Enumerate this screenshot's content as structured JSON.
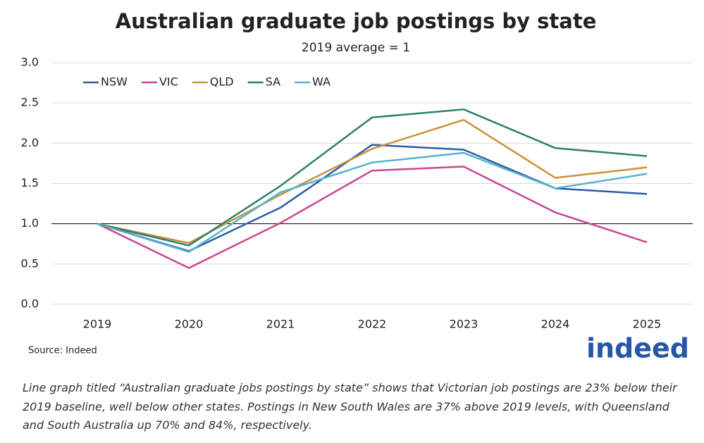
{
  "chart_data": {
    "type": "line",
    "title": "Australian graduate job postings by state",
    "subtitle": "2019 average = 1",
    "source": "Source: Indeed",
    "logo": "indeed",
    "caption": "Line graph titled “Australian graduate jobs postings by state” shows that Victorian job postings are 23% below their 2019 baseline, well below other states. Postings in New South Wales are 37% above 2019 levels, with Queensland and South Australia up 70% and 84%, respectively.",
    "categories": [
      "2019",
      "2020",
      "2021",
      "2022",
      "2023",
      "2024",
      "2025"
    ],
    "series": [
      {
        "name": "NSW",
        "color": "#2f5aa8",
        "values": [
          1.0,
          0.66,
          1.2,
          1.98,
          1.92,
          1.44,
          1.37
        ]
      },
      {
        "name": "VIC",
        "color": "#c8458f",
        "values": [
          1.0,
          0.45,
          1.01,
          1.66,
          1.71,
          1.14,
          0.77
        ]
      },
      {
        "name": "QLD",
        "color": "#c9923a",
        "values": [
          1.0,
          0.76,
          1.36,
          1.93,
          2.29,
          1.57,
          1.7
        ]
      },
      {
        "name": "SA",
        "color": "#2e8068",
        "values": [
          1.0,
          0.73,
          1.47,
          2.32,
          2.42,
          1.94,
          1.84
        ]
      },
      {
        "name": "WA",
        "color": "#55b3cf",
        "values": [
          1.0,
          0.65,
          1.39,
          1.76,
          1.88,
          1.44,
          1.62
        ]
      }
    ],
    "ylim": [
      0,
      3
    ],
    "yticks": [
      {
        "value": 0,
        "label": "0.0"
      },
      {
        "value": 0.5,
        "label": "0.5"
      },
      {
        "value": 1,
        "label": "1.0"
      },
      {
        "value": 1.5,
        "label": "1.5"
      },
      {
        "value": 2,
        "label": "2.0"
      },
      {
        "value": 2.5,
        "label": "2.5"
      },
      {
        "value": 3,
        "label": "3.0"
      }
    ],
    "grid": true,
    "reference_line": 1,
    "legend": "top-left"
  }
}
